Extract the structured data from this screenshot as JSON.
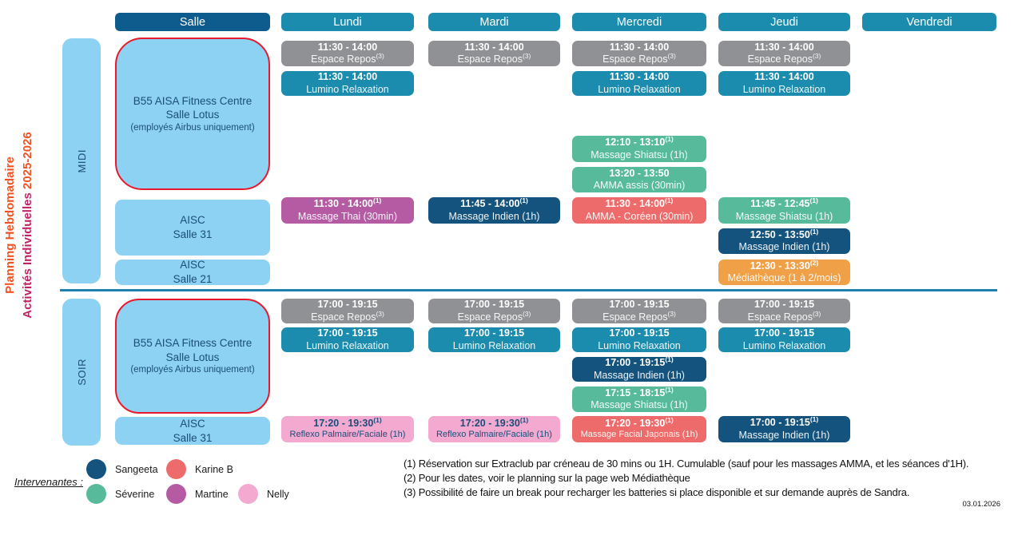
{
  "title": {
    "line1": "Planning Hebdomadaire",
    "line2_main": "Activités Individuelles",
    "line2_years": "2025-2026"
  },
  "header": {
    "salle": "Salle",
    "days": [
      "Lundi",
      "Mardi",
      "Mercredi",
      "Jeudi",
      "Vendredi"
    ]
  },
  "colors": {
    "room_bg": "#8dd2f2",
    "room_text": "#1a4e79",
    "red_border": "#e8192d",
    "divider": "#1e82ae",
    "header_salle": "#0d5c8d",
    "header_day": "#1b8cad",
    "title_orange": "#f05323",
    "title_crimson": "#c22366",
    "palette": {
      "gray": "#909194",
      "teal": "#1b8cad",
      "navy": "#14537d",
      "green": "#57bb9b",
      "salmon": "#ee6b6b",
      "purple": "#b45ba3",
      "pink": "#f4a9d0",
      "orange": "#f0a147"
    }
  },
  "sections": [
    {
      "id": "midi",
      "label": "MIDI",
      "rooms": [
        {
          "id": "b55",
          "lines": [
            "B55 AISA Fitness Centre",
            "Salle Lotus"
          ],
          "note": "(employés Airbus uniquement)",
          "red_border": true
        },
        {
          "id": "salle31",
          "lines": [
            "AISC",
            "Salle 31"
          ]
        },
        {
          "id": "salle21",
          "lines": [
            "AISC",
            "Salle 21"
          ]
        }
      ]
    },
    {
      "id": "soir",
      "label": "SOIR",
      "rooms": [
        {
          "id": "b55",
          "lines": [
            "B55 AISA Fitness Centre",
            "Salle Lotus"
          ],
          "note": "(employés Airbus uniquement)",
          "red_border": true
        },
        {
          "id": "salle31",
          "lines": [
            "AISC",
            "Salle 31"
          ]
        }
      ]
    }
  ],
  "events": [
    {
      "section": "midi",
      "day": "lundi",
      "slot": "a",
      "color": "gray",
      "time": "11:30 - 14:00",
      "label": "Espace Repos",
      "label_sup": "(3)"
    },
    {
      "section": "midi",
      "day": "lundi",
      "slot": "b",
      "color": "teal",
      "time": "11:30 - 14:00",
      "label": "Lumino Relaxation"
    },
    {
      "section": "midi",
      "day": "mardi",
      "slot": "a",
      "color": "gray",
      "time": "11:30 - 14:00",
      "label": "Espace Repos",
      "label_sup": "(3)"
    },
    {
      "section": "midi",
      "day": "mercredi",
      "slot": "a",
      "color": "gray",
      "time": "11:30 - 14:00",
      "label": "Espace Repos",
      "label_sup": "(3)"
    },
    {
      "section": "midi",
      "day": "mercredi",
      "slot": "b",
      "color": "teal",
      "time": "11:30 - 14:00",
      "label": "Lumino Relaxation"
    },
    {
      "section": "midi",
      "day": "jeudi",
      "slot": "a",
      "color": "gray",
      "time": "11:30 - 14:00",
      "label": "Espace Repos",
      "label_sup": "(3)"
    },
    {
      "section": "midi",
      "day": "jeudi",
      "slot": "b",
      "color": "teal",
      "time": "11:30 - 14:00",
      "label": "Lumino Relaxation"
    },
    {
      "section": "midi",
      "day": "mercredi",
      "slot": "c",
      "color": "green",
      "time": "12:10 - 13:10",
      "time_sup": "(1)",
      "label": "Massage Shiatsu (1h)"
    },
    {
      "section": "midi",
      "day": "mercredi",
      "slot": "d",
      "color": "green",
      "time": "13:20 - 13:50",
      "label": "AMMA assis (30min)"
    },
    {
      "section": "midi",
      "day": "lundi",
      "slot": "e",
      "color": "purple",
      "time": "11:30 - 14:00",
      "time_sup": "(1)",
      "label": "Massage Thai (30min)"
    },
    {
      "section": "midi",
      "day": "mardi",
      "slot": "e",
      "color": "navy",
      "time": "11:45 - 14:00",
      "time_sup": "(1)",
      "label": "Massage Indien (1h)"
    },
    {
      "section": "midi",
      "day": "mercredi",
      "slot": "e",
      "color": "salmon",
      "time": "11:30 - 14:00",
      "time_sup": "(1)",
      "label": "AMMA -  Coréen (30min)"
    },
    {
      "section": "midi",
      "day": "jeudi",
      "slot": "e",
      "color": "green",
      "time": "11:45 - 12:45",
      "time_sup": "(1)",
      "label": "Massage Shiatsu (1h)"
    },
    {
      "section": "midi",
      "day": "jeudi",
      "slot": "f",
      "color": "navy",
      "time": "12:50 - 13:50",
      "time_sup": "(1)",
      "label": "Massage Indien (1h)"
    },
    {
      "section": "midi",
      "day": "jeudi",
      "slot": "g",
      "color": "orange",
      "time": "12:30 - 13:30",
      "time_sup": "(2)",
      "label": "Médiathèque (1 à 2/mois)"
    },
    {
      "section": "soir",
      "day": "lundi",
      "slot": "a",
      "color": "gray",
      "time": "17:00 - 19:15",
      "label": "Espace Repos",
      "label_sup": "(3)"
    },
    {
      "section": "soir",
      "day": "lundi",
      "slot": "b",
      "color": "teal",
      "time": "17:00 - 19:15",
      "label": "Lumino Relaxation"
    },
    {
      "section": "soir",
      "day": "mardi",
      "slot": "a",
      "color": "gray",
      "time": "17:00 - 19:15",
      "label": "Espace Repos",
      "label_sup": "(3)"
    },
    {
      "section": "soir",
      "day": "mardi",
      "slot": "b",
      "color": "teal",
      "time": "17:00 - 19:15",
      "label": "Lumino Relaxation"
    },
    {
      "section": "soir",
      "day": "mercredi",
      "slot": "a",
      "color": "gray",
      "time": "17:00 - 19:15",
      "label": "Espace Repos",
      "label_sup": "(3)"
    },
    {
      "section": "soir",
      "day": "mercredi",
      "slot": "b",
      "color": "teal",
      "time": "17:00 - 19:15",
      "label": "Lumino Relaxation"
    },
    {
      "section": "soir",
      "day": "jeudi",
      "slot": "a",
      "color": "gray",
      "time": "17:00 - 19:15",
      "label": "Espace Repos",
      "label_sup": "(3)"
    },
    {
      "section": "soir",
      "day": "jeudi",
      "slot": "b",
      "color": "teal",
      "time": "17:00 - 19:15",
      "label": "Lumino Relaxation"
    },
    {
      "section": "soir",
      "day": "mercredi",
      "slot": "c",
      "color": "navy",
      "time": "17:00 - 19:15",
      "time_sup": "(1)",
      "label": "Massage Indien (1h)"
    },
    {
      "section": "soir",
      "day": "mercredi",
      "slot": "d",
      "color": "green",
      "time": "17:15 - 18:15",
      "time_sup": "(1)",
      "label": "Massage Shiatsu (1h)"
    },
    {
      "section": "soir",
      "day": "lundi",
      "slot": "e",
      "color": "pink",
      "time": "17:20 - 19:30",
      "time_sup": "(1)",
      "label": "Reflexo Palmaire/Faciale (1h)",
      "small": true
    },
    {
      "section": "soir",
      "day": "mardi",
      "slot": "e",
      "color": "pink",
      "time": "17:20 - 19:30",
      "time_sup": "(1)",
      "label": "Reflexo Palmaire/Faciale (1h)",
      "small": true
    },
    {
      "section": "soir",
      "day": "mercredi",
      "slot": "e",
      "color": "salmon",
      "time": "17:20 - 19:30",
      "time_sup": "(1)",
      "label": "Massage Facial Japonais (1h)",
      "small": true
    },
    {
      "section": "soir",
      "day": "jeudi",
      "slot": "e",
      "color": "navy",
      "time": "17:00 - 19:15",
      "time_sup": "(1)",
      "label": "Massage Indien (1h)"
    }
  ],
  "legend": {
    "label": "Intervenantes :",
    "people": [
      {
        "name": "Sangeeta",
        "color": "#14537d"
      },
      {
        "name": "Séverine",
        "color": "#57bb9b"
      },
      {
        "name": "Karine B",
        "color": "#ee6b6b"
      },
      {
        "name": "Martine",
        "color": "#b45ba3"
      },
      {
        "name": "Nelly",
        "color": "#f4a9d0"
      }
    ]
  },
  "footnotes": [
    "(1) Réservation sur Extraclub par créneau de 30 mins ou 1H. Cumulable (sauf pour les massages AMMA, et les séances d'1H).",
    "(2) Pour les dates, voir le planning sur la page web Médiathèque",
    "(3) Possibilité de faire un break pour recharger les batteries si place disponible et sur demande auprès de Sandra."
  ],
  "date": "03.01.2026"
}
